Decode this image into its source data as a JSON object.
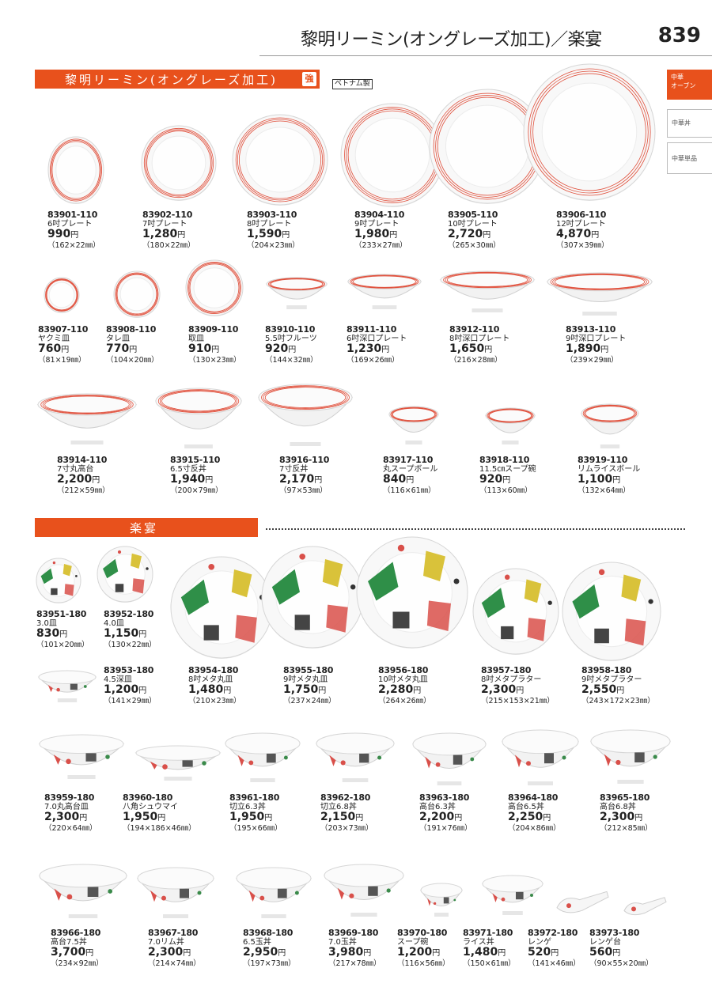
{
  "header": {
    "title": "黎明リーミン(オングレーズ加工)／楽宴",
    "page_number": "839"
  },
  "sections": {
    "reimin": {
      "title": "黎明リーミン(オングレーズ加工)",
      "badge": "強",
      "origin": "ベトナム製"
    },
    "rakuen": {
      "title": "楽宴"
    }
  },
  "tabs": [
    {
      "label1": "中華",
      "label2": "オーブン"
    },
    {
      "label1": "中華丼",
      "label2": ""
    },
    {
      "label1": "中華単品",
      "label2": ""
    }
  ],
  "yen": "円",
  "products": [
    {
      "code": "83901-110",
      "name": "6吋プレート",
      "price": "990",
      "size": "（162×22㎜）"
    },
    {
      "code": "83902-110",
      "name": "7吋プレート",
      "price": "1,280",
      "size": "（180×22㎜）"
    },
    {
      "code": "83903-110",
      "name": "8吋プレート",
      "price": "1,590",
      "size": "（204×23㎜）"
    },
    {
      "code": "83904-110",
      "name": "9吋プレート",
      "price": "1,980",
      "size": "（233×27㎜）"
    },
    {
      "code": "83905-110",
      "name": "10吋プレート",
      "price": "2,720",
      "size": "（265×30㎜）"
    },
    {
      "code": "83906-110",
      "name": "12吋プレート",
      "price": "4,870",
      "size": "（307×39㎜）"
    },
    {
      "code": "83907-110",
      "name": "ヤクミ皿",
      "price": "760",
      "size": "（81×19㎜）"
    },
    {
      "code": "83908-110",
      "name": "タレ皿",
      "price": "770",
      "size": "（104×20㎜）"
    },
    {
      "code": "83909-110",
      "name": "取皿",
      "price": "910",
      "size": "（130×23㎜）"
    },
    {
      "code": "83910-110",
      "name": "5.5吋フルーツ",
      "price": "920",
      "size": "（144×32㎜）"
    },
    {
      "code": "83911-110",
      "name": "6吋深口プレート",
      "price": "1,230",
      "size": "（169×26㎜）"
    },
    {
      "code": "83912-110",
      "name": "8吋深口プレート",
      "price": "1,650",
      "size": "（216×28㎜）"
    },
    {
      "code": "83913-110",
      "name": "9吋深口プレート",
      "price": "1,890",
      "size": "（239×29㎜）"
    },
    {
      "code": "83914-110",
      "name": "7寸丸高台",
      "price": "2,200",
      "size": "（212×59㎜）"
    },
    {
      "code": "83915-110",
      "name": "6.5寸反丼",
      "price": "1,940",
      "size": "（200×79㎜）"
    },
    {
      "code": "83916-110",
      "name": "7寸反丼",
      "price": "2,170",
      "size": "（97×53㎜）"
    },
    {
      "code": "83917-110",
      "name": "丸スープボール",
      "price": "840",
      "size": "（116×61㎜）"
    },
    {
      "code": "83918-110",
      "name": "11.5㎝スープ碗",
      "price": "920",
      "size": "（113×60㎜）"
    },
    {
      "code": "83919-110",
      "name": "リムライスボール",
      "price": "1,100",
      "size": "（132×64㎜）"
    },
    {
      "code": "83951-180",
      "name": "3.0皿",
      "price": "830",
      "size": "（101×20㎜）"
    },
    {
      "code": "83952-180",
      "name": "4.0皿",
      "price": "1,150",
      "size": "（130×22㎜）"
    },
    {
      "code": "83953-180",
      "name": "4.5深皿",
      "price": "1,200",
      "size": "（141×29㎜）"
    },
    {
      "code": "83954-180",
      "name": "8吋メタ丸皿",
      "price": "1,480",
      "size": "（210×23㎜）"
    },
    {
      "code": "83955-180",
      "name": "9吋メタ丸皿",
      "price": "1,750",
      "size": "（237×24㎜）"
    },
    {
      "code": "83956-180",
      "name": "10吋メタ丸皿",
      "price": "2,280",
      "size": "（264×26㎜）"
    },
    {
      "code": "83957-180",
      "name": "8吋メタプラター",
      "price": "2,300",
      "size": "（215×153×21㎜）"
    },
    {
      "code": "83958-180",
      "name": "9吋メタプラター",
      "price": "2,550",
      "size": "（243×172×23㎜）"
    },
    {
      "code": "83959-180",
      "name": "7.0丸高台皿",
      "price": "2,300",
      "size": "（220×64㎜）"
    },
    {
      "code": "83960-180",
      "name": "八角シュウマイ",
      "price": "1,950",
      "size": "（194×186×46㎜）"
    },
    {
      "code": "83961-180",
      "name": "切立6.3丼",
      "price": "1,950",
      "size": "（195×66㎜）"
    },
    {
      "code": "83962-180",
      "name": "切立6.8丼",
      "price": "2,150",
      "size": "（203×73㎜）"
    },
    {
      "code": "83963-180",
      "name": "高台6.3丼",
      "price": "2,200",
      "size": "（191×76㎜）"
    },
    {
      "code": "83964-180",
      "name": "高台6.5丼",
      "price": "2,250",
      "size": "（204×86㎜）"
    },
    {
      "code": "83965-180",
      "name": "高台6.8丼",
      "price": "2,300",
      "size": "（212×85㎜）"
    },
    {
      "code": "83966-180",
      "name": "高台7.5丼",
      "price": "3,700",
      "size": "（234×92㎜）"
    },
    {
      "code": "83967-180",
      "name": "7.0リム丼",
      "price": "2,300",
      "size": "（214×74㎜）"
    },
    {
      "code": "83968-180",
      "name": "6.5玉丼",
      "price": "2,950",
      "size": "（197×73㎜）"
    },
    {
      "code": "83969-180",
      "name": "7.0玉丼",
      "price": "3,980",
      "size": "（217×78㎜）"
    },
    {
      "code": "83970-180",
      "name": "スープ碗",
      "price": "1,200",
      "size": "（116×56㎜）"
    },
    {
      "code": "83971-180",
      "name": "ライス丼",
      "price": "1,480",
      "size": "（150×61㎜）"
    },
    {
      "code": "83972-180",
      "name": "レンゲ",
      "price": "520",
      "size": "（141×46㎜）"
    },
    {
      "code": "83973-180",
      "name": "レンゲ台",
      "price": "560",
      "size": "（90×55×20㎜）"
    }
  ]
}
